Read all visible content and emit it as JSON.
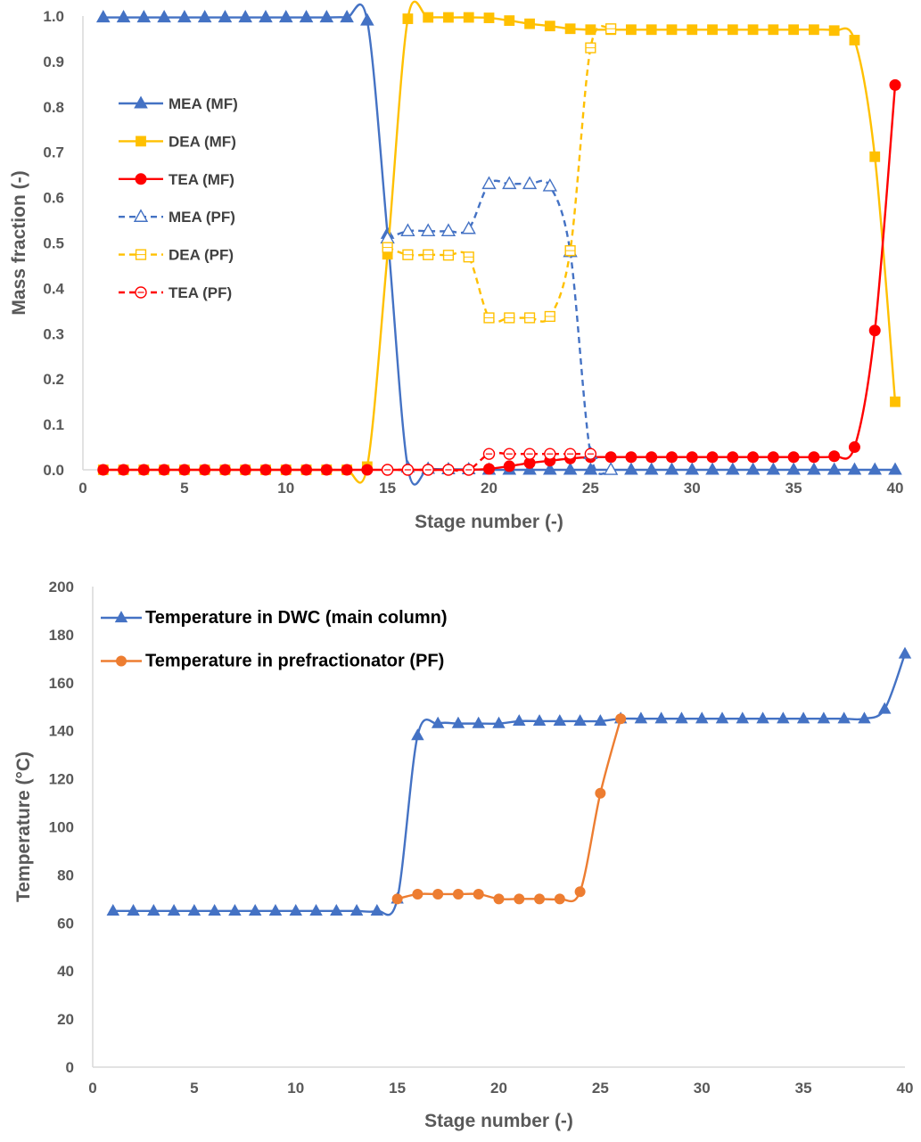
{
  "colors": {
    "mea": "#4472C4",
    "dea": "#FFC000",
    "tea": "#FF0000",
    "pf_temp": "#ED7D31",
    "axis": "#D9D9D9",
    "text": "#595959"
  },
  "chart_data": [
    {
      "type": "line",
      "xlabel": "Stage number (-)",
      "ylabel": "Mass fraction (-)",
      "xlim": [
        0,
        40
      ],
      "ylim": [
        0,
        1.0
      ],
      "xticks": [
        "0",
        "5",
        "10",
        "15",
        "20",
        "25",
        "30",
        "35",
        "40"
      ],
      "yticks": [
        "0.0",
        "0.1",
        "0.2",
        "0.3",
        "0.4",
        "0.5",
        "0.6",
        "0.7",
        "0.8",
        "0.9",
        "1.0"
      ],
      "grid": false,
      "legend_position": "left",
      "series": [
        {
          "name": "MEA (MF)",
          "color": "#4472C4",
          "marker": "triangle",
          "filled": true,
          "dashed": false,
          "x": [
            1,
            2,
            3,
            4,
            5,
            6,
            7,
            8,
            9,
            10,
            11,
            12,
            13,
            14,
            15,
            16,
            17,
            18,
            19,
            20,
            21,
            22,
            23,
            24,
            25,
            26,
            27,
            28,
            29,
            30,
            31,
            32,
            33,
            34,
            35,
            36,
            37,
            38,
            39,
            40
          ],
          "y": [
            0.997,
            0.997,
            0.997,
            0.997,
            0.997,
            0.997,
            0.997,
            0.997,
            0.997,
            0.997,
            0.997,
            0.997,
            0.997,
            0.99,
            0.52,
            0.005,
            0.002,
            0.001,
            0.001,
            0.0,
            0.0,
            0.0,
            0.0,
            0.0,
            0.0,
            0.0,
            0.0,
            0.0,
            0.0,
            0.0,
            0.0,
            0.0,
            0.0,
            0.0,
            0.0,
            0.0,
            0.0,
            0.0,
            0.0,
            0.0
          ]
        },
        {
          "name": "DEA (MF)",
          "color": "#FFC000",
          "marker": "square",
          "filled": true,
          "dashed": false,
          "x": [
            1,
            2,
            3,
            4,
            5,
            6,
            7,
            8,
            9,
            10,
            11,
            12,
            13,
            14,
            15,
            16,
            17,
            18,
            19,
            20,
            21,
            22,
            23,
            24,
            25,
            26,
            27,
            28,
            29,
            30,
            31,
            32,
            33,
            34,
            35,
            36,
            37,
            38,
            39,
            40
          ],
          "y": [
            0.0,
            0.0,
            0.0,
            0.0,
            0.0,
            0.0,
            0.0,
            0.0,
            0.0,
            0.0,
            0.0,
            0.0,
            0.0,
            0.007,
            0.475,
            0.994,
            0.997,
            0.997,
            0.997,
            0.996,
            0.99,
            0.983,
            0.978,
            0.972,
            0.97,
            0.97,
            0.97,
            0.97,
            0.97,
            0.97,
            0.97,
            0.97,
            0.97,
            0.97,
            0.97,
            0.97,
            0.968,
            0.947,
            0.69,
            0.15
          ]
        },
        {
          "name": "TEA (MF)",
          "color": "#FF0000",
          "marker": "circle",
          "filled": true,
          "dashed": false,
          "x": [
            1,
            2,
            3,
            4,
            5,
            6,
            7,
            8,
            9,
            10,
            11,
            12,
            13,
            14,
            15,
            16,
            17,
            18,
            19,
            20,
            21,
            22,
            23,
            24,
            25,
            26,
            27,
            28,
            29,
            30,
            31,
            32,
            33,
            34,
            35,
            36,
            37,
            38,
            39,
            40
          ],
          "y": [
            0.0,
            0.0,
            0.0,
            0.0,
            0.0,
            0.0,
            0.0,
            0.0,
            0.0,
            0.0,
            0.0,
            0.0,
            0.0,
            0.0,
            0.0,
            0.0,
            0.0,
            0.0,
            0.0,
            0.002,
            0.008,
            0.015,
            0.02,
            0.025,
            0.028,
            0.028,
            0.028,
            0.028,
            0.028,
            0.028,
            0.028,
            0.028,
            0.028,
            0.028,
            0.028,
            0.028,
            0.03,
            0.05,
            0.307,
            0.848
          ]
        },
        {
          "name": "MEA (PF)",
          "color": "#4472C4",
          "marker": "triangle",
          "filled": false,
          "dashed": true,
          "x": [
            15,
            16,
            17,
            18,
            19,
            20,
            21,
            22,
            23,
            24,
            25,
            26
          ],
          "y": [
            0.51,
            0.526,
            0.526,
            0.526,
            0.531,
            0.63,
            0.63,
            0.63,
            0.625,
            0.48,
            0.035,
            0.0
          ]
        },
        {
          "name": "DEA (PF)",
          "color": "#FFC000",
          "marker": "square",
          "filled": false,
          "dashed": true,
          "x": [
            15,
            16,
            17,
            18,
            19,
            20,
            21,
            22,
            23,
            24,
            25,
            26
          ],
          "y": [
            0.49,
            0.474,
            0.474,
            0.473,
            0.469,
            0.335,
            0.335,
            0.335,
            0.338,
            0.483,
            0.93,
            0.972
          ]
        },
        {
          "name": "TEA (PF)",
          "color": "#FF0000",
          "marker": "circle",
          "filled": false,
          "dashed": true,
          "x": [
            15,
            16,
            17,
            18,
            19,
            20,
            21,
            22,
            23,
            24,
            25
          ],
          "y": [
            0.0,
            0.0,
            0.0,
            0.0,
            0.0,
            0.035,
            0.035,
            0.035,
            0.035,
            0.035,
            0.035
          ]
        }
      ]
    },
    {
      "type": "line",
      "xlabel": "Stage number (-)",
      "ylabel": "Temperature (°C)",
      "xlim": [
        0,
        40
      ],
      "ylim": [
        0,
        200
      ],
      "xticks": [
        "0",
        "5",
        "10",
        "15",
        "20",
        "25",
        "30",
        "35",
        "40"
      ],
      "yticks": [
        "0",
        "20",
        "40",
        "60",
        "80",
        "100",
        "120",
        "140",
        "160",
        "180",
        "200"
      ],
      "grid": false,
      "legend_position": "top-left",
      "series": [
        {
          "name": "Temperature in DWC (main column)",
          "color": "#4472C4",
          "marker": "triangle",
          "filled": true,
          "dashed": false,
          "x": [
            1,
            2,
            3,
            4,
            5,
            6,
            7,
            8,
            9,
            10,
            11,
            12,
            13,
            14,
            15,
            16,
            17,
            18,
            19,
            20,
            21,
            22,
            23,
            24,
            25,
            26,
            27,
            28,
            29,
            30,
            31,
            32,
            33,
            34,
            35,
            36,
            37,
            38,
            39,
            40
          ],
          "y": [
            65,
            65,
            65,
            65,
            65,
            65,
            65,
            65,
            65,
            65,
            65,
            65,
            65,
            65,
            70,
            138,
            143,
            143,
            143,
            143,
            144,
            144,
            144,
            144,
            144,
            145,
            145,
            145,
            145,
            145,
            145,
            145,
            145,
            145,
            145,
            145,
            145,
            145,
            149,
            172
          ]
        },
        {
          "name": "Temperature in prefractionator (PF)",
          "color": "#ED7D31",
          "marker": "circle",
          "filled": true,
          "dashed": false,
          "x": [
            15,
            16,
            17,
            18,
            19,
            20,
            21,
            22,
            23,
            24,
            25,
            26
          ],
          "y": [
            70,
            72,
            72,
            72,
            72,
            70,
            70,
            70,
            70,
            73,
            114,
            145
          ]
        }
      ]
    }
  ]
}
